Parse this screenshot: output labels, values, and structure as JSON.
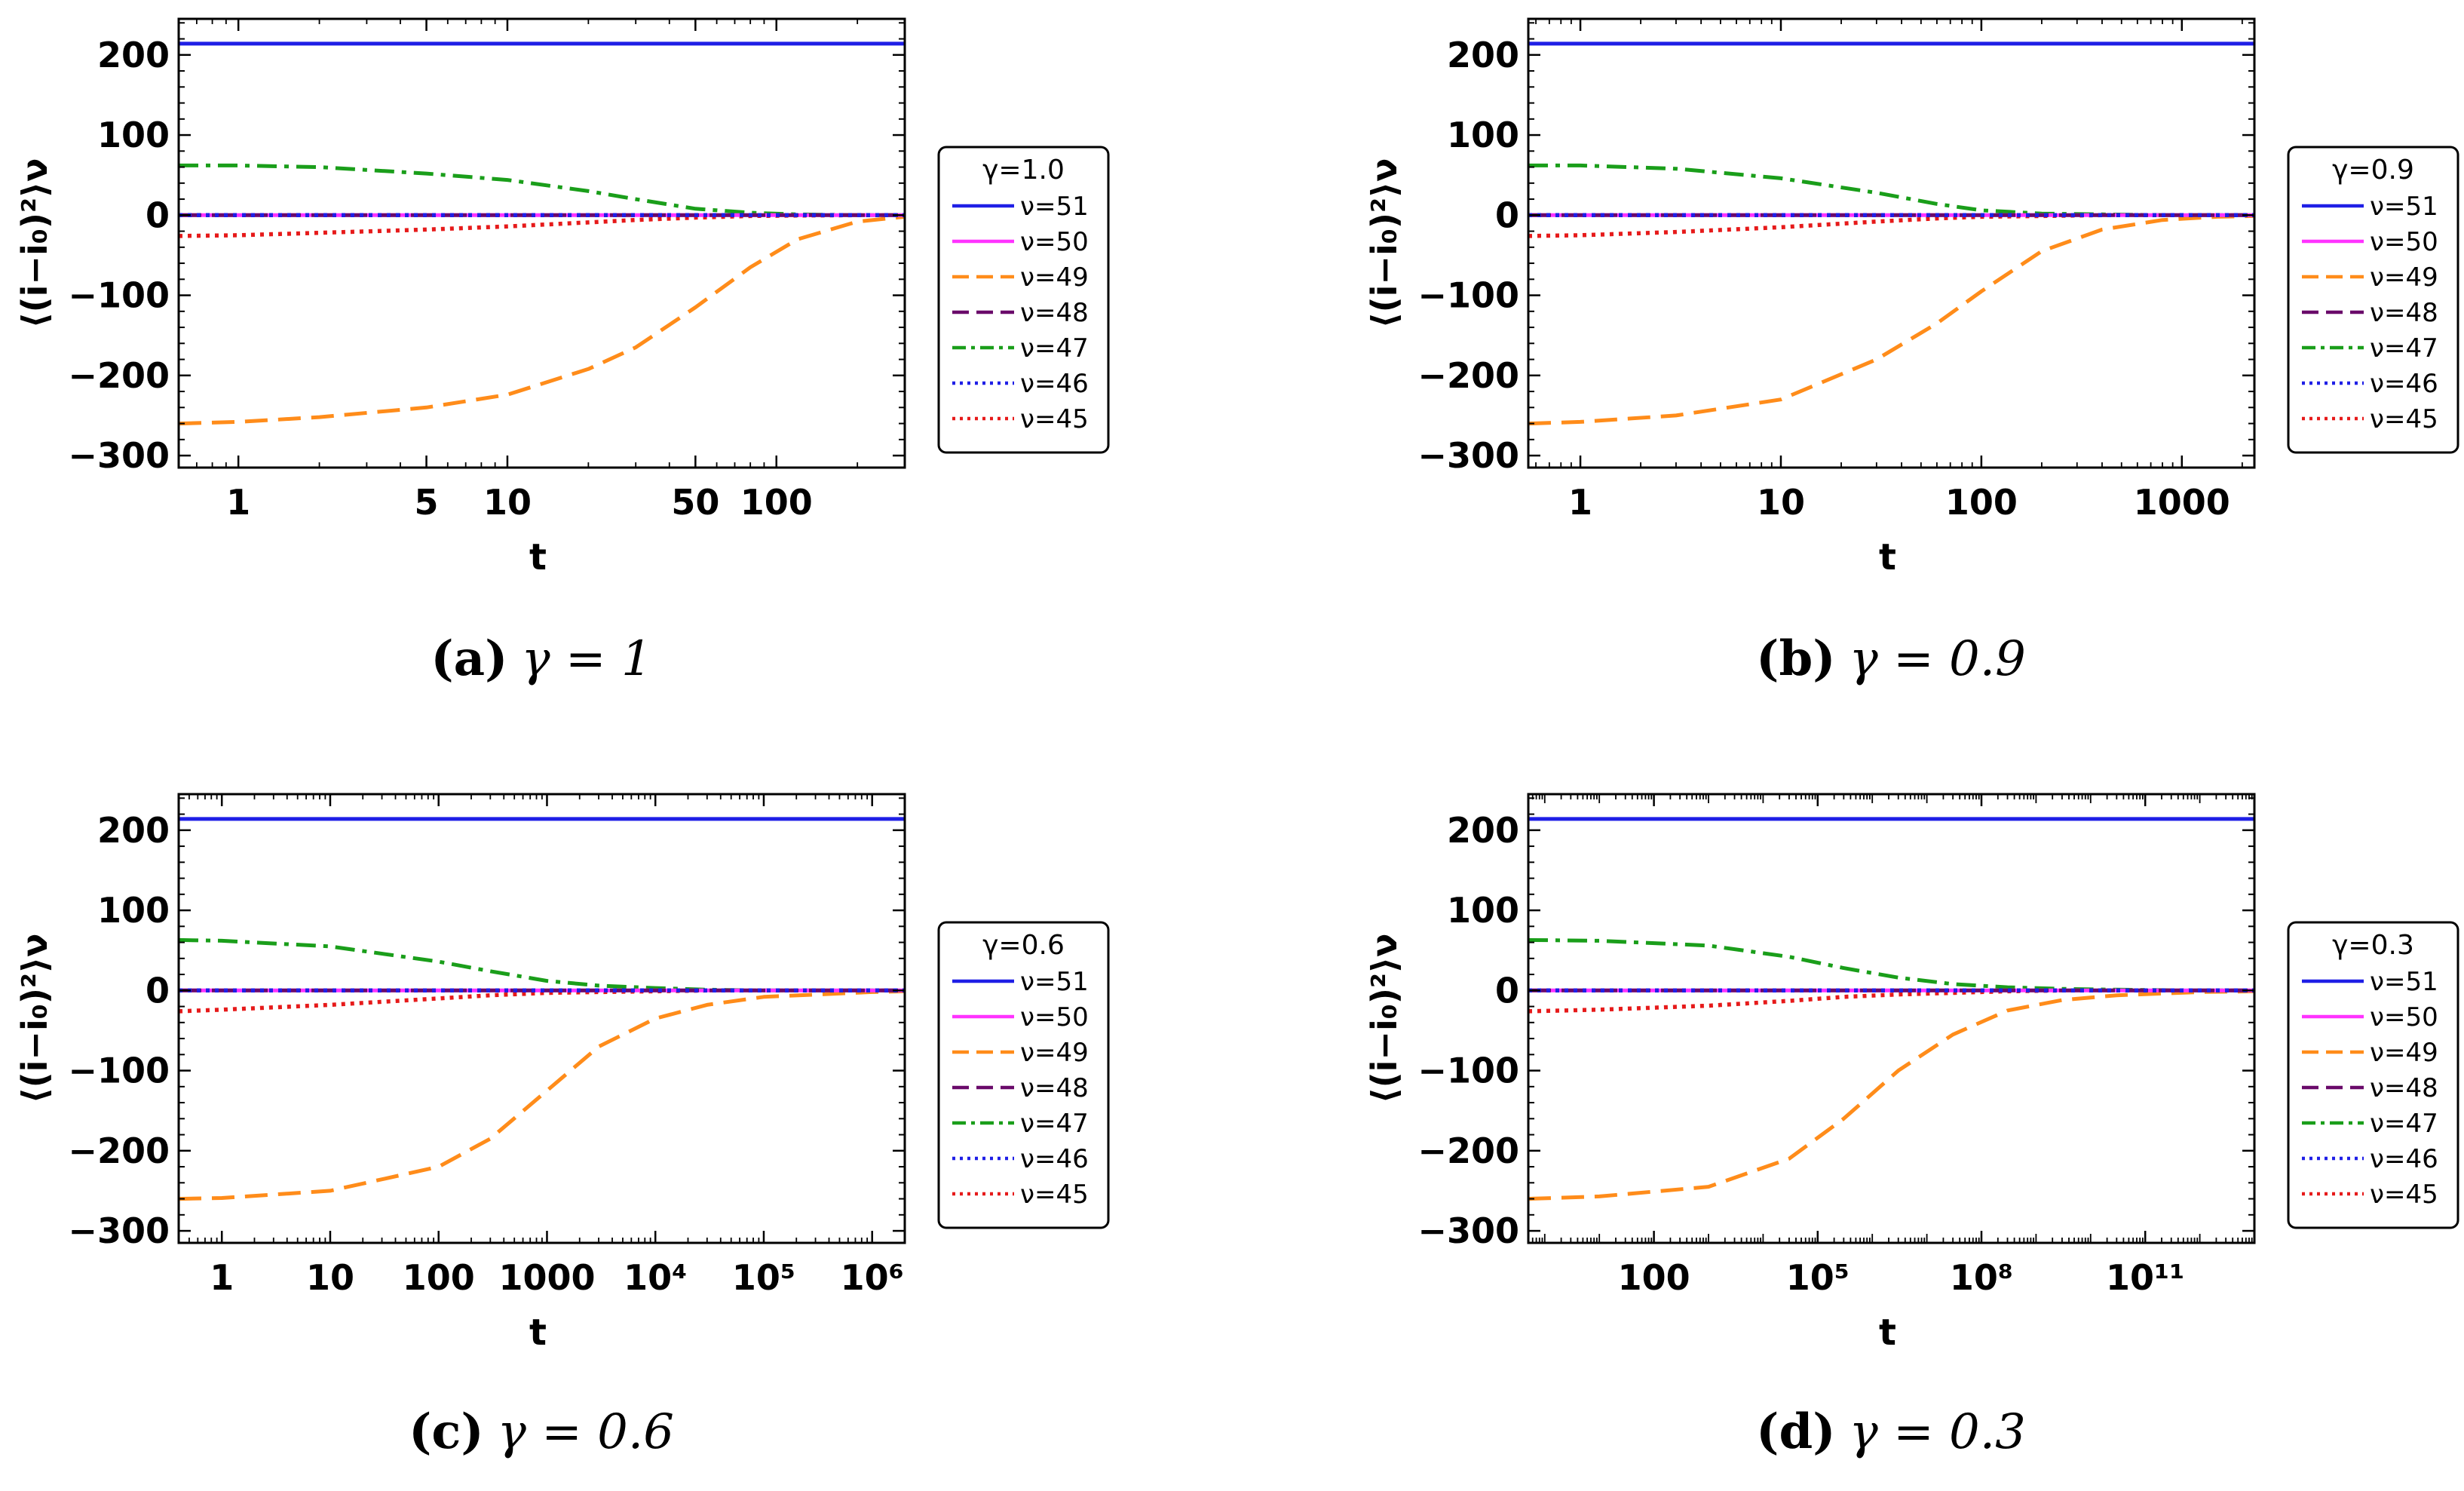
{
  "figure": {
    "ylabel": "⟨(i−i₀)²⟩ν",
    "xlabel": "t"
  },
  "legend_entries": [
    {
      "label": "ν=51",
      "color": "#1f1fe6",
      "dash": "solid"
    },
    {
      "label": "ν=50",
      "color": "#ff33ff",
      "dash": "solid"
    },
    {
      "label": "ν=49",
      "color": "#ff8c1a",
      "dash": "long-dash"
    },
    {
      "label": "ν=48",
      "color": "#6a0a6a",
      "dash": "long-dash"
    },
    {
      "label": "ν=47",
      "color": "#1a9e1a",
      "dash": "dash-dot"
    },
    {
      "label": "ν=46",
      "color": "#1f1fe6",
      "dash": "dot"
    },
    {
      "label": "ν=45",
      "color": "#e61a1a",
      "dash": "dot"
    }
  ],
  "chart_data": [
    {
      "type": "line",
      "panel": "a",
      "caption_tag": "(a)",
      "caption_eq": "γ = 1",
      "legend_title": "γ=1.0",
      "xscale": "log",
      "xlabel": "t",
      "ylabel": "⟨(i−i₀)²⟩ν",
      "xlim": [
        0.6,
        300
      ],
      "ylim": [
        -315,
        245
      ],
      "xticks": [
        {
          "v": 1,
          "label": "1"
        },
        {
          "v": 5,
          "label": "5"
        },
        {
          "v": 10,
          "label": "10"
        },
        {
          "v": 50,
          "label": "50"
        },
        {
          "v": 100,
          "label": "100"
        }
      ],
      "yticks": [
        {
          "v": -300,
          "label": "−300"
        },
        {
          "v": -200,
          "label": "−200"
        },
        {
          "v": -100,
          "label": "−100"
        },
        {
          "v": 0,
          "label": "0"
        },
        {
          "v": 100,
          "label": "100"
        },
        {
          "v": 200,
          "label": "200"
        }
      ],
      "series": [
        {
          "name": "ν=51",
          "x": [
            0.6,
            300
          ],
          "values": [
            214,
            214
          ]
        },
        {
          "name": "ν=50",
          "x": [
            0.6,
            300
          ],
          "values": [
            0,
            0
          ]
        },
        {
          "name": "ν=49",
          "x": [
            0.6,
            1,
            2,
            5,
            10,
            20,
            30,
            50,
            80,
            120,
            200,
            300
          ],
          "values": [
            -260,
            -258,
            -252,
            -240,
            -224,
            -192,
            -165,
            -115,
            -65,
            -30,
            -8,
            -2
          ]
        },
        {
          "name": "ν=48",
          "x": [
            0.6,
            300
          ],
          "values": [
            0,
            0
          ]
        },
        {
          "name": "ν=47",
          "x": [
            0.6,
            1,
            2,
            5,
            10,
            20,
            30,
            50,
            80,
            120,
            200,
            300
          ],
          "values": [
            62,
            62,
            60,
            52,
            44,
            30,
            20,
            8,
            3,
            1,
            0,
            0
          ]
        },
        {
          "name": "ν=46",
          "x": [
            0.6,
            300
          ],
          "values": [
            0,
            0
          ]
        },
        {
          "name": "ν=45",
          "x": [
            0.6,
            1,
            2,
            5,
            10,
            20,
            30,
            50,
            80,
            120,
            200,
            300
          ],
          "values": [
            -26,
            -25,
            -22,
            -18,
            -14,
            -9,
            -6,
            -3,
            -1,
            -0.5,
            0,
            0
          ]
        }
      ]
    },
    {
      "type": "line",
      "panel": "b",
      "caption_tag": "(b)",
      "caption_eq": "γ = 0.9",
      "legend_title": "γ=0.9",
      "xscale": "log",
      "xlabel": "t",
      "ylabel": "⟨(i−i₀)²⟩ν",
      "xlim": [
        0.55,
        2300
      ],
      "ylim": [
        -315,
        245
      ],
      "xticks": [
        {
          "v": 1,
          "label": "1"
        },
        {
          "v": 10,
          "label": "10"
        },
        {
          "v": 100,
          "label": "100"
        },
        {
          "v": 1000,
          "label": "1000"
        }
      ],
      "yticks": [
        {
          "v": -300,
          "label": "−300"
        },
        {
          "v": -200,
          "label": "−200"
        },
        {
          "v": -100,
          "label": "−100"
        },
        {
          "v": 0,
          "label": "0"
        },
        {
          "v": 100,
          "label": "100"
        },
        {
          "v": 200,
          "label": "200"
        }
      ],
      "series": [
        {
          "name": "ν=51",
          "x": [
            0.55,
            2300
          ],
          "values": [
            214,
            214
          ]
        },
        {
          "name": "ν=50",
          "x": [
            0.55,
            2300
          ],
          "values": [
            0,
            0
          ]
        },
        {
          "name": "ν=49",
          "x": [
            0.55,
            1,
            3,
            10,
            30,
            60,
            100,
            200,
            400,
            800,
            1500,
            2300
          ],
          "values": [
            -260,
            -258,
            -250,
            -230,
            -180,
            -135,
            -95,
            -45,
            -18,
            -6,
            -2,
            -1
          ]
        },
        {
          "name": "ν=48",
          "x": [
            0.55,
            2300
          ],
          "values": [
            0,
            0
          ]
        },
        {
          "name": "ν=47",
          "x": [
            0.55,
            1,
            3,
            10,
            30,
            60,
            100,
            200,
            400,
            800,
            1500,
            2300
          ],
          "values": [
            62,
            62,
            58,
            46,
            28,
            14,
            6,
            2,
            1,
            0,
            0,
            0
          ]
        },
        {
          "name": "ν=46",
          "x": [
            0.55,
            2300
          ],
          "values": [
            0,
            0
          ]
        },
        {
          "name": "ν=45",
          "x": [
            0.55,
            1,
            3,
            10,
            30,
            60,
            100,
            200,
            400,
            800,
            1500,
            2300
          ],
          "values": [
            -26,
            -25,
            -21,
            -15,
            -8,
            -4,
            -2,
            -1,
            0,
            0,
            0,
            0
          ]
        }
      ]
    },
    {
      "type": "line",
      "panel": "c",
      "caption_tag": "(c)",
      "caption_eq": "γ = 0.6",
      "legend_title": "γ=0.6",
      "xscale": "log",
      "xlabel": "t",
      "ylabel": "⟨(i−i₀)²⟩ν",
      "xlim": [
        0.4,
        2000000
      ],
      "ylim": [
        -315,
        245
      ],
      "xticks": [
        {
          "v": 1,
          "label": "1"
        },
        {
          "v": 10,
          "label": "10"
        },
        {
          "v": 100,
          "label": "100"
        },
        {
          "v": 1000,
          "label": "1000"
        },
        {
          "v": 10000,
          "label": "10⁴"
        },
        {
          "v": 100000,
          "label": "10⁵"
        },
        {
          "v": 1000000,
          "label": "10⁶"
        }
      ],
      "yticks": [
        {
          "v": -300,
          "label": "−300"
        },
        {
          "v": -200,
          "label": "−200"
        },
        {
          "v": -100,
          "label": "−100"
        },
        {
          "v": 0,
          "label": "0"
        },
        {
          "v": 100,
          "label": "100"
        },
        {
          "v": 200,
          "label": "200"
        }
      ],
      "series": [
        {
          "name": "ν=51",
          "x": [
            0.4,
            2000000
          ],
          "values": [
            214,
            214
          ]
        },
        {
          "name": "ν=50",
          "x": [
            0.4,
            2000000
          ],
          "values": [
            0,
            0
          ]
        },
        {
          "name": "ν=49",
          "x": [
            0.4,
            1,
            10,
            100,
            300,
            1000,
            3000,
            10000,
            30000,
            100000,
            1000000,
            2000000
          ],
          "values": [
            -260,
            -259,
            -250,
            -220,
            -185,
            -125,
            -70,
            -35,
            -18,
            -8,
            -2,
            -1
          ]
        },
        {
          "name": "ν=48",
          "x": [
            0.4,
            2000000
          ],
          "values": [
            0,
            0
          ]
        },
        {
          "name": "ν=47",
          "x": [
            0.4,
            1,
            10,
            100,
            300,
            1000,
            3000,
            10000,
            30000,
            100000,
            1000000,
            2000000
          ],
          "values": [
            63,
            62,
            55,
            36,
            24,
            12,
            6,
            3,
            1,
            0,
            0,
            0
          ]
        },
        {
          "name": "ν=46",
          "x": [
            0.4,
            2000000
          ],
          "values": [
            0,
            0
          ]
        },
        {
          "name": "ν=45",
          "x": [
            0.4,
            1,
            10,
            100,
            300,
            1000,
            3000,
            10000,
            30000,
            100000,
            1000000,
            2000000
          ],
          "values": [
            -26,
            -24,
            -18,
            -10,
            -6,
            -3,
            -2,
            -1,
            0,
            0,
            0,
            0
          ]
        }
      ]
    },
    {
      "type": "line",
      "panel": "d",
      "caption_tag": "(d)",
      "caption_eq": "γ = 0.3",
      "legend_title": "γ=0.3",
      "xscale": "log",
      "xlabel": "t",
      "ylabel": "⟨(i−i₀)²⟩ν",
      "xlim": [
        0.5,
        10000000000000
      ],
      "ylim": [
        -315,
        245
      ],
      "xticks": [
        {
          "v": 100,
          "label": "100"
        },
        {
          "v": 100000,
          "label": "10⁵"
        },
        {
          "v": 100000000,
          "label": "10⁸"
        },
        {
          "v": 100000000000,
          "label": "10¹¹"
        }
      ],
      "yticks": [
        {
          "v": -300,
          "label": "−300"
        },
        {
          "v": -200,
          "label": "−200"
        },
        {
          "v": -100,
          "label": "−100"
        },
        {
          "v": 0,
          "label": "0"
        },
        {
          "v": 100,
          "label": "100"
        },
        {
          "v": 200,
          "label": "200"
        }
      ],
      "series": [
        {
          "name": "ν=51",
          "x": [
            0.5,
            10000000000000
          ],
          "values": [
            214,
            214
          ]
        },
        {
          "name": "ν=50",
          "x": [
            0.5,
            10000000000000
          ],
          "values": [
            0,
            0
          ]
        },
        {
          "name": "ν=49",
          "x": [
            0.5,
            10,
            1000,
            30000,
            300000,
            3000000,
            30000000,
            300000000,
            3000000000,
            30000000000,
            1000000000000,
            10000000000000
          ],
          "values": [
            -260,
            -257,
            -245,
            -210,
            -160,
            -100,
            -55,
            -25,
            -12,
            -6,
            -2,
            -1
          ]
        },
        {
          "name": "ν=48",
          "x": [
            0.5,
            10000000000000
          ],
          "values": [
            0,
            0
          ]
        },
        {
          "name": "ν=47",
          "x": [
            0.5,
            10,
            1000,
            30000,
            300000,
            3000000,
            30000000,
            300000000,
            3000000000,
            30000000000,
            1000000000000,
            10000000000000
          ],
          "values": [
            63,
            62,
            56,
            42,
            28,
            16,
            8,
            4,
            2,
            1,
            0,
            0
          ]
        },
        {
          "name": "ν=46",
          "x": [
            0.5,
            10000000000000
          ],
          "values": [
            0,
            0
          ]
        },
        {
          "name": "ν=45",
          "x": [
            0.5,
            10,
            1000,
            30000,
            300000,
            3000000,
            30000000,
            300000000,
            3000000000,
            30000000000,
            1000000000000,
            10000000000000
          ],
          "values": [
            -26,
            -24,
            -19,
            -13,
            -8,
            -5,
            -3,
            -1,
            0,
            0,
            0,
            0
          ]
        }
      ]
    }
  ]
}
